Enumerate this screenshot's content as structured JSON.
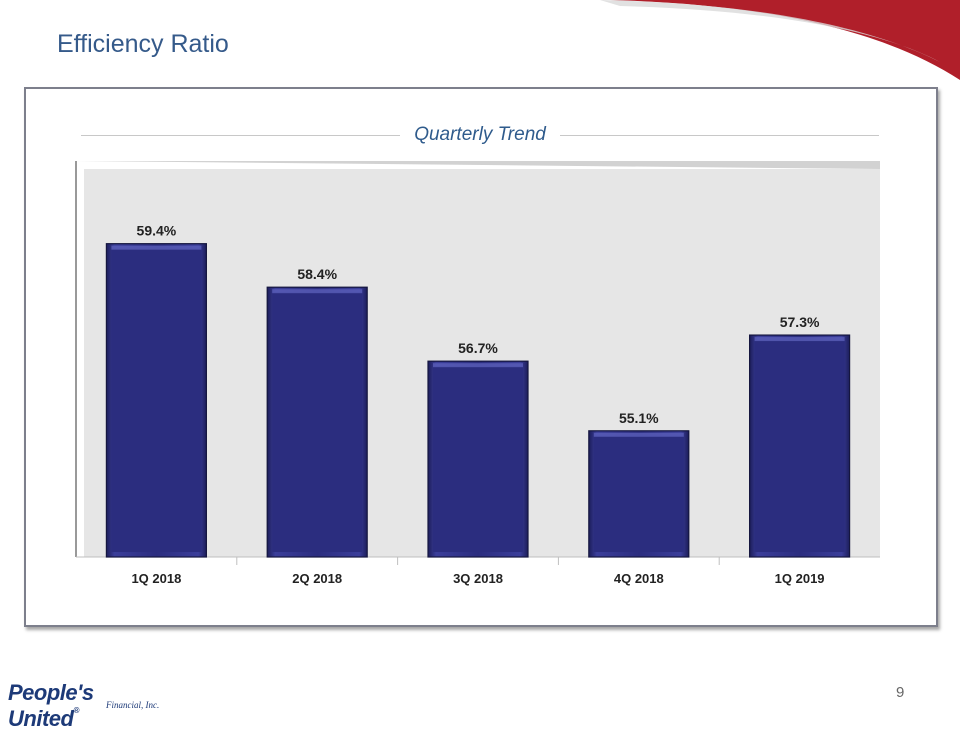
{
  "slide": {
    "title": "Efficiency Ratio",
    "page_number": "9"
  },
  "logo": {
    "name": "People's United",
    "registered": "®",
    "subtitle": "Financial, Inc."
  },
  "colors": {
    "bar": "#2b2d7f",
    "plot_background": "#e6e6e6",
    "accent_red": "#b01f2a",
    "title_blue": "#355a8a"
  },
  "chart_data": {
    "type": "bar",
    "title": "",
    "subtitle": "Quarterly Trend",
    "xlabel": "",
    "ylabel": "",
    "categories": [
      "1Q 2018",
      "2Q 2018",
      "3Q 2018",
      "4Q 2018",
      "1Q 2019"
    ],
    "values": [
      59.4,
      58.4,
      56.7,
      55.1,
      57.3
    ],
    "data_labels": [
      "59.4%",
      "58.4%",
      "56.7%",
      "55.1%",
      "57.3%"
    ],
    "ylim": [
      52.2,
      61.3
    ],
    "grid": false,
    "legend": "none"
  }
}
